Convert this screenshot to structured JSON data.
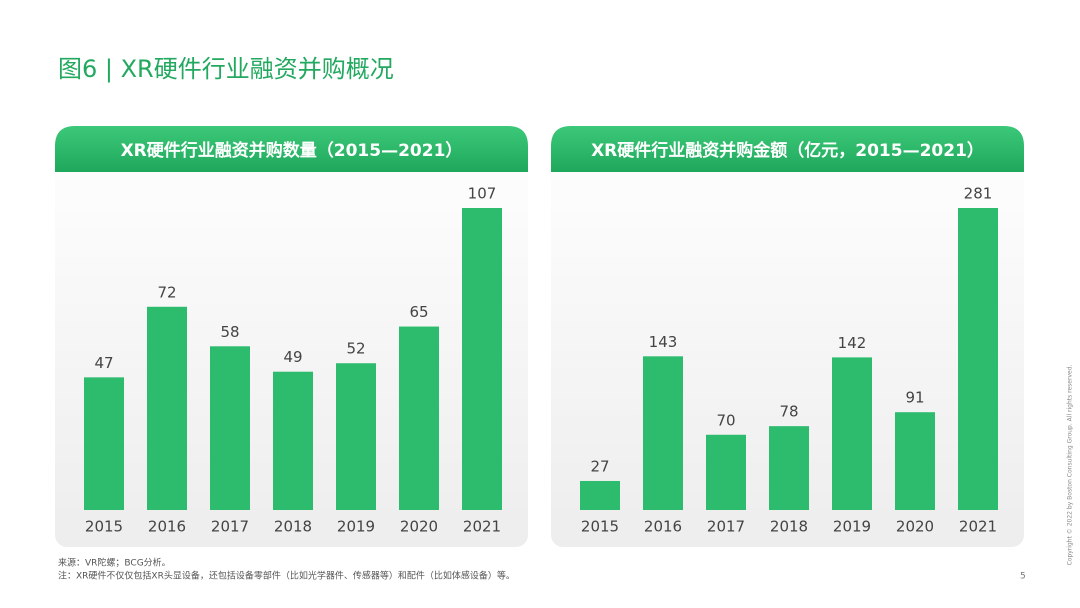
{
  "page": {
    "title": "图6 | XR硬件行业融资并购概况",
    "source": "来源：VR陀螺；BCG分析。",
    "note": "注：XR硬件不仅仅包括XR头显设备，还包括设备零部件（比如光学器件、传感器等）和配件（比如体感设备）等。",
    "copyright": "Copyright © 2022 by Boston Consulting Group. All rights reserved.",
    "page_number": "5"
  },
  "chart_data": [
    {
      "type": "bar",
      "title": "XR硬件行业融资并购数量（2015—2021）",
      "categories": [
        "2015",
        "2016",
        "2017",
        "2018",
        "2019",
        "2020",
        "2021"
      ],
      "values": [
        47,
        72,
        58,
        49,
        52,
        65,
        107
      ],
      "color": "#2dbb6e"
    },
    {
      "type": "bar",
      "title": "XR硬件行业融资并购金额（亿元，2015—2021）",
      "categories": [
        "2015",
        "2016",
        "2017",
        "2018",
        "2019",
        "2020",
        "2021"
      ],
      "values": [
        27,
        143,
        70,
        78,
        142,
        91,
        281
      ],
      "color": "#2dbb6e"
    }
  ]
}
